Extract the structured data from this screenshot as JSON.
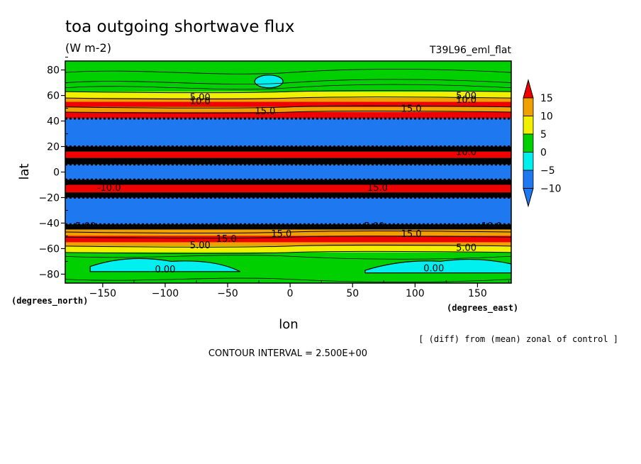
{
  "chart_data": {
    "type": "heatmap",
    "title": "toa outgoing shortwave flux",
    "subtitle": "(W m-2)",
    "run_label": "T39L96_eml_flat",
    "xlabel": "lon",
    "ylabel": "lat",
    "x_unit_label": "(degrees_east)",
    "y_unit_label": "(degrees_north)",
    "xlim": [
      -180,
      177
    ],
    "ylim": [
      -87,
      87
    ],
    "x_ticks": [
      -150,
      -100,
      -50,
      0,
      50,
      100,
      150
    ],
    "x_tick_labels": [
      "−150",
      "−100",
      "−50",
      "0",
      "50",
      "100",
      "150"
    ],
    "y_ticks": [
      80,
      60,
      40,
      20,
      0,
      -20,
      -40,
      -60,
      -80
    ],
    "y_tick_labels": [
      "80",
      "60",
      "40",
      "20",
      "0",
      "−20",
      "−40",
      "−60",
      "−80"
    ],
    "colorbar": {
      "levels": [
        15,
        10,
        5,
        0,
        -5,
        -10
      ],
      "labels": [
        "15",
        "10",
        "5",
        "0",
        "−5",
        "−10"
      ],
      "colors": [
        "#f00000",
        "#f0a000",
        "#f0f000",
        "#00d000",
        "#00f0f0",
        "#1e78f0"
      ]
    },
    "zonal_bands": [
      {
        "lat_from": 87,
        "lat_to": 63,
        "value": 2.5
      },
      {
        "lat_from": 63,
        "lat_to": 58,
        "value": 7.5
      },
      {
        "lat_from": 58,
        "lat_to": 55,
        "value": 10
      },
      {
        "lat_from": 55,
        "lat_to": 51,
        "value": 16
      },
      {
        "lat_from": 51,
        "lat_to": 47,
        "value": 11
      },
      {
        "lat_from": 47,
        "lat_to": 42,
        "value": 18
      },
      {
        "lat_from": 42,
        "lat_to": 20,
        "value": -12
      },
      {
        "lat_from": 20,
        "lat_to": 16,
        "value": 17
      },
      {
        "lat_from": 16,
        "lat_to": 11,
        "value": 18
      },
      {
        "lat_from": 11,
        "lat_to": 6,
        "value": 17
      },
      {
        "lat_from": 6,
        "lat_to": -6,
        "value": -12
      },
      {
        "lat_from": -6,
        "lat_to": -10,
        "value": 17
      },
      {
        "lat_from": -10,
        "lat_to": -16,
        "value": 18
      },
      {
        "lat_from": -16,
        "lat_to": -20,
        "value": 17
      },
      {
        "lat_from": -20,
        "lat_to": -41,
        "value": -12
      },
      {
        "lat_from": -41,
        "lat_to": -45,
        "value": 17
      },
      {
        "lat_from": -45,
        "lat_to": -50,
        "value": 11
      },
      {
        "lat_from": -50,
        "lat_to": -55,
        "value": 16
      },
      {
        "lat_from": -55,
        "lat_to": -58,
        "value": 10
      },
      {
        "lat_from": -58,
        "lat_to": -63,
        "value": 7.5
      },
      {
        "lat_from": -63,
        "lat_to": -87,
        "value": 2.5
      }
    ],
    "contour_labels": [
      {
        "text": "5.00",
        "lon": -72,
        "lat": 59
      },
      {
        "text": "10.0",
        "lon": -72,
        "lat": 56
      },
      {
        "text": "15.0",
        "lon": -20,
        "lat": 48
      },
      {
        "text": "15.0",
        "lon": 97,
        "lat": 50
      },
      {
        "text": "5.00",
        "lon": 141,
        "lat": 60
      },
      {
        "text": "10.0",
        "lon": 141,
        "lat": 57
      },
      {
        "text": "10.0",
        "lon": 141,
        "lat": 16
      },
      {
        "text": "-10.0",
        "lon": -145,
        "lat": -12
      },
      {
        "text": "15.0",
        "lon": 70,
        "lat": -12
      },
      {
        "text": "-5.00",
        "lon": -165,
        "lat": -42
      },
      {
        "text": "-5.00",
        "lon": 66,
        "lat": -42
      },
      {
        "text": "-10.0",
        "lon": 160,
        "lat": -42
      },
      {
        "text": "15.0",
        "lon": -7,
        "lat": -48
      },
      {
        "text": "15.0",
        "lon": 97,
        "lat": -48
      },
      {
        "text": "15.0",
        "lon": -51,
        "lat": -52
      },
      {
        "text": "5.00",
        "lon": -72,
        "lat": -57
      },
      {
        "text": "5.00",
        "lon": 141,
        "lat": -59
      },
      {
        "text": "0.00",
        "lon": -100,
        "lat": -76
      },
      {
        "text": "0.00",
        "lon": 115,
        "lat": -75
      }
    ],
    "footnote": "[ (diff) from (mean) zonal of control ]",
    "contour_interval": "CONTOUR INTERVAL = 2.500E+00"
  }
}
